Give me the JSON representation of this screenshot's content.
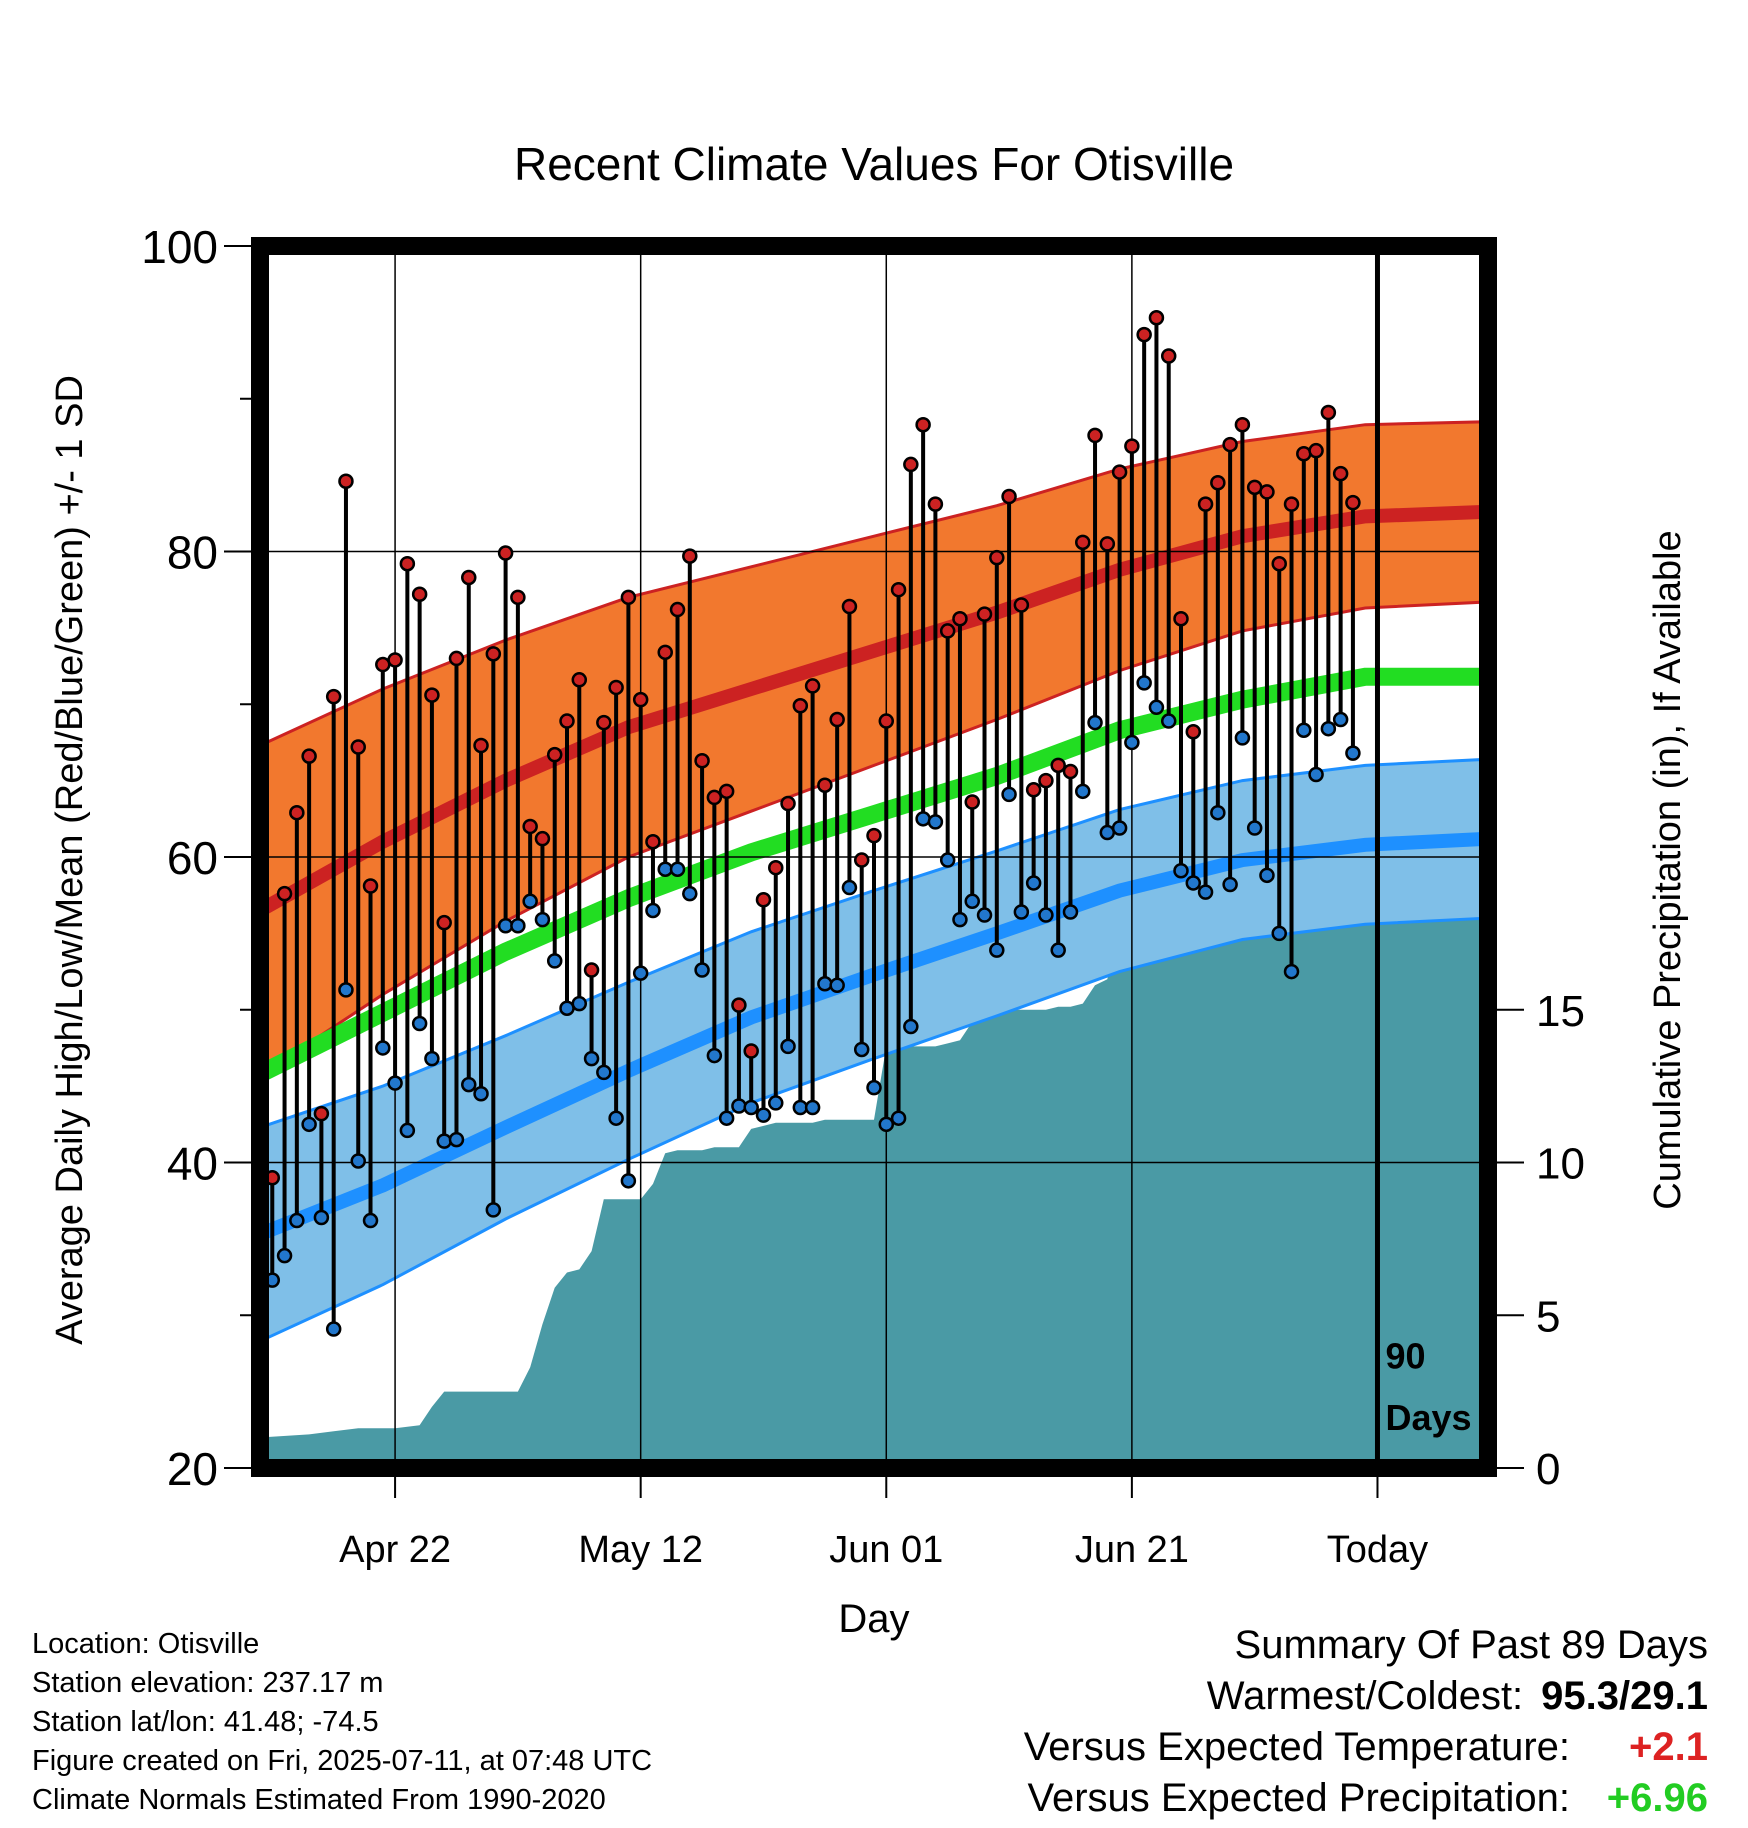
{
  "chart_data": {
    "type": "line",
    "title": "Recent Climate Values For Otisville",
    "xlabel": "Day",
    "ylabel": "Average Daily High/Low/Mean (Red/Blue/Green) +/- 1 SD",
    "y2label": "Cumulative Precipitation (in), If Available",
    "ylim": [
      20,
      100
    ],
    "y2lim": [
      0,
      40
    ],
    "y_ticks": [
      "20",
      "40",
      "60",
      "80",
      "100"
    ],
    "y2_ticks": [
      "0",
      "5",
      "10",
      "15"
    ],
    "x_ticks": [
      "Apr 22",
      "May 12",
      "Jun 01",
      "Jun 21",
      "Today"
    ],
    "x_tick_days": [
      11,
      31,
      51,
      71,
      91
    ],
    "x_range_days": [
      0,
      100
    ],
    "today_marker": {
      "day": 91,
      "label_line1": "90",
      "label_line2": "Days"
    },
    "colors": {
      "high": "#cc2222",
      "high_band": "#f2782e",
      "low": "#1e90ff",
      "low_band": "#7fbfe8",
      "mean": "#22dd22",
      "precip": "#4a9aa5",
      "high_marker": "#cc2222",
      "low_marker": "#2277cc"
    },
    "normals": {
      "days": [
        0,
        10,
        20,
        30,
        40,
        50,
        60,
        70,
        80,
        90,
        100
      ],
      "high": [
        56.5,
        61.0,
        65.0,
        68.5,
        71.0,
        73.5,
        76.0,
        78.8,
        81.0,
        82.3,
        82.6
      ],
      "high_sd": [
        10.8,
        10.0,
        9.2,
        8.5,
        8.0,
        7.5,
        7.0,
        6.6,
        6.2,
        6.0,
        5.9
      ],
      "mean": [
        45.8,
        49.8,
        53.8,
        57.3,
        60.3,
        62.8,
        65.3,
        68.3,
        70.3,
        71.8,
        71.8
      ],
      "low": [
        35.3,
        38.5,
        42.3,
        46.0,
        49.5,
        52.3,
        55.0,
        57.8,
        59.8,
        60.8,
        61.2
      ],
      "low_sd": [
        7.0,
        6.5,
        6.0,
        5.8,
        5.6,
        5.5,
        5.4,
        5.3,
        5.2,
        5.2,
        5.2
      ]
    },
    "series": [
      {
        "name": "High",
        "x": [
          1,
          2,
          3,
          4,
          5,
          6,
          7,
          8,
          9,
          10,
          11,
          12,
          13,
          14,
          15,
          16,
          17,
          18,
          19,
          20,
          21,
          22,
          23,
          24,
          25,
          26,
          27,
          28,
          29,
          30,
          31,
          32,
          33,
          34,
          35,
          36,
          37,
          38,
          39,
          40,
          41,
          42,
          43,
          44,
          45,
          46,
          47,
          48,
          49,
          50,
          51,
          52,
          53,
          54,
          55,
          56,
          57,
          58,
          59,
          60,
          61,
          62,
          63,
          64,
          65,
          66,
          67,
          68,
          69,
          70,
          71,
          72,
          73,
          74,
          75,
          76,
          77,
          78,
          79,
          80,
          81,
          82,
          83,
          84,
          85,
          86,
          87,
          88,
          89
        ],
        "values": [
          39.0,
          57.6,
          62.9,
          66.6,
          43.2,
          70.5,
          84.6,
          67.2,
          58.1,
          72.6,
          72.9,
          79.2,
          77.2,
          70.6,
          55.7,
          73.0,
          78.3,
          67.3,
          73.3,
          79.9,
          77.0,
          62.0,
          61.2,
          66.7,
          68.9,
          71.6,
          52.6,
          68.8,
          71.1,
          77.0,
          70.3,
          61.0,
          73.4,
          76.2,
          79.7,
          66.3,
          63.9,
          64.3,
          50.3,
          47.3,
          57.2,
          59.3,
          63.5,
          69.9,
          71.2,
          64.7,
          69.0,
          76.4,
          59.8,
          61.4,
          68.9,
          77.5,
          85.7,
          88.3,
          83.1,
          74.8,
          75.6,
          63.6,
          75.9,
          79.6,
          83.6,
          76.5,
          64.4,
          65.0,
          66.0,
          65.6,
          80.6,
          87.6,
          80.5,
          85.2,
          86.9,
          94.2,
          95.3,
          92.8,
          75.6,
          68.2,
          83.1,
          84.5,
          87.0,
          88.3,
          84.2,
          83.9,
          79.2,
          83.1,
          86.4,
          86.6,
          89.1,
          85.1,
          83.2
        ]
      },
      {
        "name": "Low",
        "x": [
          1,
          2,
          3,
          4,
          5,
          6,
          7,
          8,
          9,
          10,
          11,
          12,
          13,
          14,
          15,
          16,
          17,
          18,
          19,
          20,
          21,
          22,
          23,
          24,
          25,
          26,
          27,
          28,
          29,
          30,
          31,
          32,
          33,
          34,
          35,
          36,
          37,
          38,
          39,
          40,
          41,
          42,
          43,
          44,
          45,
          46,
          47,
          48,
          49,
          50,
          51,
          52,
          53,
          54,
          55,
          56,
          57,
          58,
          59,
          60,
          61,
          62,
          63,
          64,
          65,
          66,
          67,
          68,
          69,
          70,
          71,
          72,
          73,
          74,
          75,
          76,
          77,
          78,
          79,
          80,
          81,
          82,
          83,
          84,
          85,
          86,
          87,
          88,
          89
        ],
        "values": [
          32.3,
          33.9,
          36.2,
          42.5,
          36.4,
          29.1,
          51.3,
          40.1,
          36.2,
          47.5,
          45.2,
          42.1,
          49.1,
          46.8,
          41.4,
          41.5,
          45.1,
          44.5,
          36.9,
          55.5,
          55.5,
          57.1,
          55.9,
          53.2,
          50.1,
          50.4,
          46.8,
          45.9,
          42.9,
          38.8,
          52.4,
          56.5,
          59.2,
          59.2,
          57.6,
          52.6,
          47.0,
          42.9,
          43.7,
          43.6,
          43.1,
          43.9,
          47.6,
          43.6,
          43.6,
          51.7,
          51.6,
          58.0,
          47.4,
          44.9,
          42.5,
          42.9,
          48.9,
          62.5,
          62.3,
          59.8,
          55.9,
          57.1,
          56.2,
          53.9,
          64.1,
          56.4,
          58.3,
          56.2,
          53.9,
          56.4,
          64.3,
          68.8,
          61.6,
          61.9,
          67.5,
          71.4,
          69.8,
          68.9,
          59.1,
          58.3,
          57.7,
          62.9,
          58.2,
          67.8,
          61.9,
          58.8,
          55.0,
          52.5,
          68.3,
          65.4,
          68.4,
          69.0,
          66.8
        ]
      }
    ],
    "precip": {
      "x": [
        0,
        4,
        6,
        8,
        11,
        13,
        14,
        15,
        16,
        17,
        18,
        19,
        21,
        22,
        23,
        24,
        25,
        26,
        27,
        28,
        29,
        30,
        31,
        32,
        33,
        34,
        35,
        36,
        37,
        38,
        39,
        40,
        42,
        45,
        46,
        47,
        48,
        49,
        50,
        51,
        52,
        53,
        54,
        55,
        56,
        57,
        58,
        59,
        61,
        62,
        63,
        64,
        65,
        66,
        67,
        68,
        69,
        70,
        73,
        74,
        75,
        76,
        77,
        78,
        79,
        80,
        81,
        82,
        83,
        84,
        85,
        86,
        87,
        88,
        89,
        90,
        100
      ],
      "values": [
        1.0,
        1.1,
        1.2,
        1.3,
        1.3,
        1.4,
        2.0,
        2.5,
        2.5,
        2.5,
        2.5,
        2.5,
        2.5,
        3.3,
        4.7,
        5.9,
        6.4,
        6.5,
        7.1,
        8.8,
        8.8,
        8.8,
        8.8,
        9.3,
        10.3,
        10.4,
        10.4,
        10.4,
        10.5,
        10.5,
        10.5,
        11.1,
        11.3,
        11.3,
        11.4,
        11.4,
        11.4,
        11.4,
        11.4,
        13.8,
        13.8,
        13.8,
        13.8,
        13.8,
        13.9,
        14.0,
        14.6,
        14.8,
        15.0,
        15.0,
        15.0,
        15.0,
        15.1,
        15.1,
        15.2,
        15.8,
        16.0,
        17.6,
        17.7,
        17.8,
        17.8,
        17.8,
        18.0,
        18.0,
        18.0,
        18.1,
        18.1,
        18.1,
        18.1,
        18.1,
        18.5,
        18.5,
        18.5,
        18.5,
        18.5,
        18.5,
        18.5
      ]
    }
  },
  "station_info": {
    "location": "Location: Otisville",
    "elevation": "Station elevation: 237.17 m",
    "latlon": "Station lat/lon: 41.48; -74.5",
    "created": "Figure created on Fri, 2025-07-11, at 07:48 UTC",
    "normals": "Climate Normals Estimated From 1990-2020"
  },
  "summary": {
    "title": "Summary Of Past 89 Days",
    "warmest_label": "Warmest/Coldest:",
    "warmest_value": "95.3/29.1",
    "temp_label": "Versus Expected Temperature:",
    "temp_value": "+2.1",
    "temp_color": "#dd2222",
    "precip_label": "Versus Expected Precipitation:",
    "precip_value": "+6.96",
    "precip_color": "#22cc22"
  }
}
